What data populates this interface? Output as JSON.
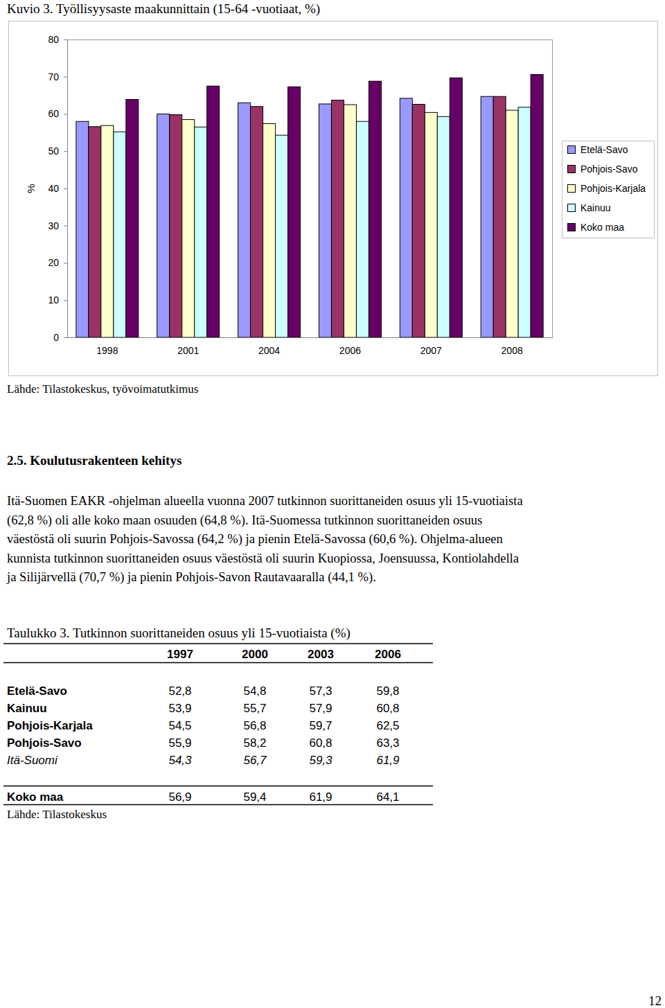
{
  "chart_data": {
    "type": "bar",
    "title": "Kuvio 3. Työllisyysaste maakunnittain (15-64 -vuotiaat, %)",
    "y_label": "%",
    "categories": [
      "1998",
      "2001",
      "2004",
      "2006",
      "2007",
      "2008"
    ],
    "series": [
      {
        "name": "Etelä-Savo",
        "color": "#9999ff",
        "values": [
          58.0,
          60.0,
          63.0,
          62.7,
          64.2,
          64.7
        ]
      },
      {
        "name": "Pohjois-Savo",
        "color": "#993366",
        "values": [
          56.6,
          59.8,
          62.0,
          63.7,
          62.6,
          64.7
        ]
      },
      {
        "name": "Pohjois-Karjala",
        "color": "#ffffcc",
        "values": [
          56.9,
          58.5,
          57.4,
          62.5,
          60.4,
          61.0
        ]
      },
      {
        "name": "Kainuu",
        "color": "#ccffff",
        "values": [
          55.2,
          56.5,
          54.3,
          58.0,
          59.3,
          61.8
        ]
      },
      {
        "name": "Koko maa",
        "color": "#660066",
        "values": [
          63.9,
          67.5,
          67.3,
          68.8,
          69.7,
          70.6
        ]
      }
    ],
    "ylim": [
      0,
      80
    ],
    "yticks": [
      0,
      10,
      20,
      30,
      40,
      50,
      60,
      70,
      80
    ],
    "legend": "right",
    "source": "Lähde: Tilastokeskus, työvoimatutkimus"
  },
  "document": {
    "heading": "2.5. Koulutusrakenteen kehitys",
    "paragraph": [
      "Itä-Suomen EAKR -ohjelman alueella vuonna 2007 tutkinnon suorittaneiden osuus yli 15-vuotiaista",
      "(62,8 %) oli alle koko maan osuuden (64,8 %). Itä-Suomessa tutkinnon suorittaneiden osuus",
      "väestöstä oli suurin Pohjois-Savossa (64,2 %) ja pienin Etelä-Savossa (60,6 %). Ohjelma-alueen",
      "kunnista tutkinnon suorittaneiden osuus väestöstä oli suurin Kuopiossa, Joensuussa, Kontiolahdella",
      "ja Silijärvellä (70,7 %) ja pienin Pohjois-Savon Rautavaaralla (44,1 %)."
    ],
    "table": {
      "caption": "Taulukko 3. Tutkinnon suorittaneiden osuus yli 15-vuotiaista (%)",
      "columns": [
        "1997",
        "2000",
        "2003",
        "2006"
      ],
      "rows": [
        {
          "label": "Etelä-Savo",
          "values": [
            "52,8",
            "54,8",
            "57,3",
            "59,8"
          ]
        },
        {
          "label": "Kainuu",
          "values": [
            "53,9",
            "55,7",
            "57,9",
            "60,8"
          ]
        },
        {
          "label": "Pohjois-Karjala",
          "values": [
            "54,5",
            "56,8",
            "59,7",
            "62,5"
          ]
        },
        {
          "label": "Pohjois-Savo",
          "values": [
            "55,9",
            "58,2",
            "60,8",
            "63,3"
          ]
        }
      ],
      "summary": {
        "label": "Itä-Suomi",
        "values": [
          "54,3",
          "56,7",
          "59,3",
          "61,9"
        ]
      },
      "total": {
        "label": "Koko maa",
        "values": [
          "56,9",
          "59,4",
          "61,9",
          "64,1"
        ]
      },
      "source": "Lähde: Tilastokeskus"
    },
    "page_number": "12"
  }
}
